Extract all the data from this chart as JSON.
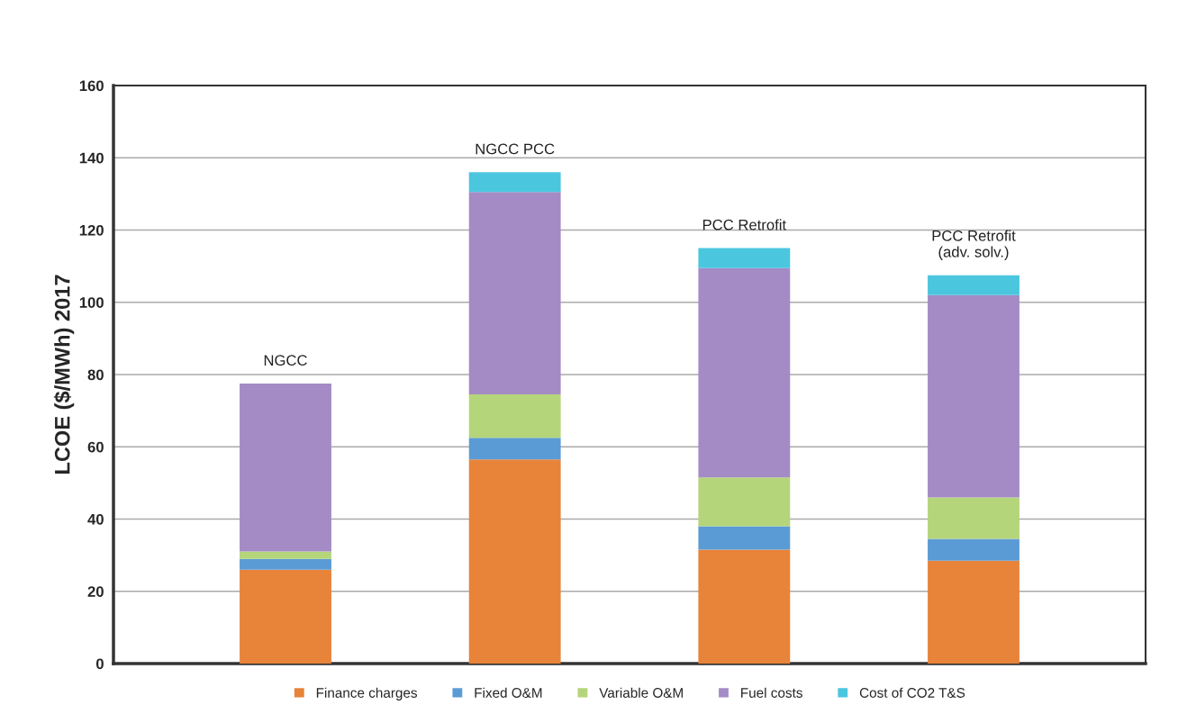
{
  "chart_data": {
    "type": "bar",
    "stacked": true,
    "ylabel": "LCOE ($/MWh) 2017",
    "categories": [
      "NGCC",
      "NGCC PCC",
      "PCC Retrofit",
      "PCC Retrofit\n(adv. solv.)"
    ],
    "series": [
      {
        "name": "Finance charges",
        "color": "#e8833a",
        "values": [
          26,
          56.5,
          31.5,
          28.5
        ]
      },
      {
        "name": "Fixed O&M",
        "color": "#5b9bd5",
        "values": [
          3,
          6,
          6.5,
          6
        ]
      },
      {
        "name": "Variable O&M",
        "color": "#b5d57a",
        "values": [
          2,
          12,
          13.5,
          11.5
        ]
      },
      {
        "name": "Fuel costs",
        "color": "#a48bc5",
        "values": [
          46.5,
          56,
          58,
          56
        ]
      },
      {
        "name": "Cost of CO2 T&S",
        "color": "#4bc6df",
        "values": [
          null,
          5.5,
          5.5,
          5.5
        ]
      }
    ],
    "ylim": [
      0,
      160
    ],
    "yticks": [
      0,
      20,
      40,
      60,
      80,
      100,
      120,
      140,
      160
    ],
    "grid": "y",
    "legend": "bottom",
    "tick_labels": "y"
  }
}
